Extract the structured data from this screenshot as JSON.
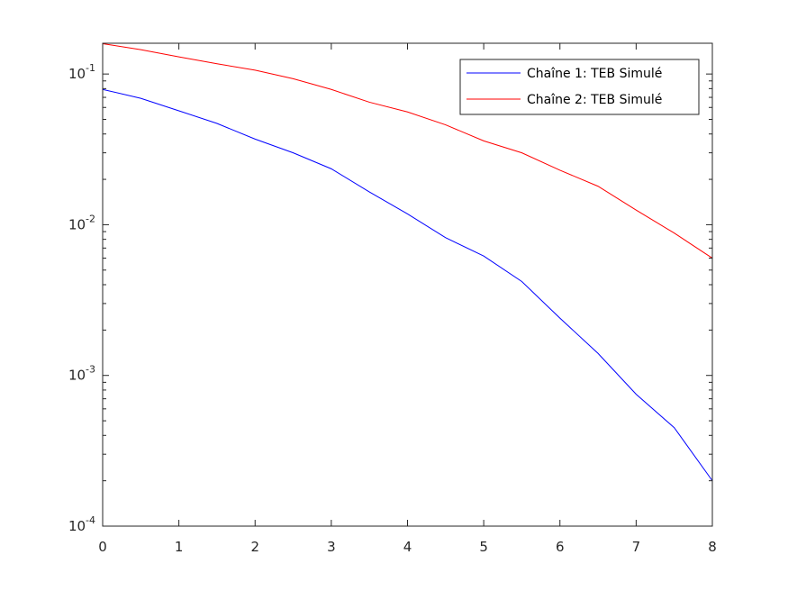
{
  "chart_data": {
    "type": "line",
    "title": "",
    "xlabel": "",
    "ylabel": "",
    "xlim": [
      0,
      8
    ],
    "ylim": [
      0.0001,
      0.16
    ],
    "yscale": "log",
    "grid": false,
    "legend_position": "top-right",
    "x_ticks": [
      "0",
      "1",
      "2",
      "3",
      "4",
      "5",
      "6",
      "7",
      "8"
    ],
    "y_ticks": [
      {
        "value": 0.1,
        "base": "10",
        "exp": "-1"
      },
      {
        "value": 0.01,
        "base": "10",
        "exp": "-2"
      },
      {
        "value": 0.001,
        "base": "10",
        "exp": "-3"
      },
      {
        "value": 0.0001,
        "base": "10",
        "exp": "-4"
      }
    ],
    "x": [
      0,
      0.5,
      1,
      1.5,
      2,
      2.5,
      3,
      3.5,
      4,
      4.5,
      5,
      5.5,
      6,
      6.5,
      7,
      7.5,
      8
    ],
    "series": [
      {
        "name": "Chaîne 1: TEB Simulé",
        "color": "#0000ff",
        "values": [
          0.079,
          0.069,
          0.057,
          0.047,
          0.037,
          0.03,
          0.0235,
          0.0165,
          0.0118,
          0.0082,
          0.0062,
          0.0042,
          0.0024,
          0.0014,
          0.00075,
          0.00045,
          0.0002
        ]
      },
      {
        "name": "Chaîne 2: TEB Simulé",
        "color": "#ff0000",
        "values": [
          0.159,
          0.145,
          0.13,
          0.117,
          0.106,
          0.093,
          0.079,
          0.065,
          0.056,
          0.046,
          0.036,
          0.03,
          0.023,
          0.018,
          0.0125,
          0.0088,
          0.006
        ]
      }
    ]
  }
}
